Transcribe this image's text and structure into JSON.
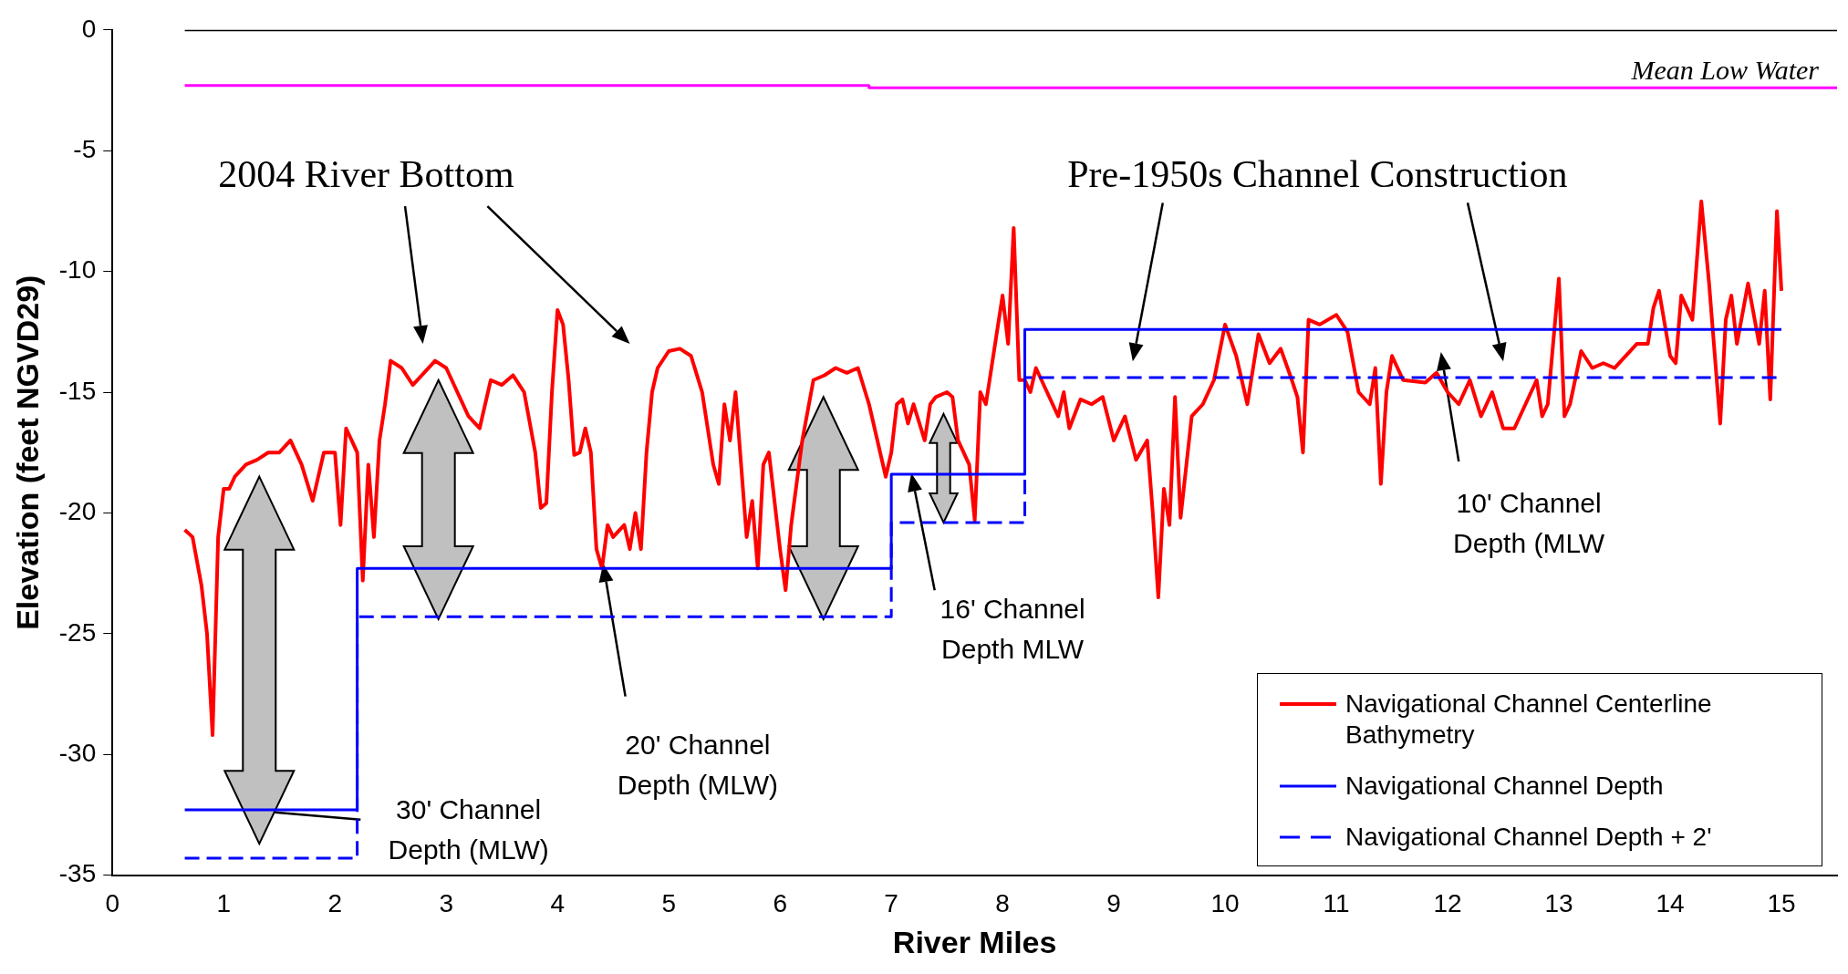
{
  "chart_data": {
    "type": "line",
    "xlabel": "River Miles",
    "ylabel": "Elevation (feet NGVD29)",
    "xlim": [
      0,
      15.5
    ],
    "xticks": [
      0,
      1,
      2,
      3,
      4,
      5,
      6,
      7,
      8,
      9,
      10,
      11,
      12,
      13,
      14,
      15
    ],
    "ylim": [
      -35,
      0
    ],
    "yticks": [
      0,
      -5,
      -10,
      -15,
      -20,
      -25,
      -30,
      -35
    ],
    "grid": false,
    "legend": "bottom right",
    "marker": "none",
    "annotations": [
      "2004 River Bottom",
      "Pre-1950s Channel Construction",
      "30' Channel\nDepth (MLW)",
      "20' Channel\nDepth (MLW)",
      "16' Channel\nDepth MLW",
      "10' Channel\nDepth (MLW"
    ],
    "series": [
      {
        "name": "Navigational Channel Centerline Bathymetry",
        "type": "line",
        "color": "#ff0000",
        "line_style": "solid",
        "x": [
          0.65,
          0.72,
          0.8,
          0.85,
          0.9,
          0.95,
          1.0,
          1.05,
          1.1,
          1.2,
          1.3,
          1.4,
          1.5,
          1.6,
          1.7,
          1.8,
          1.9,
          2.0,
          2.05,
          2.1,
          2.15,
          2.2,
          2.25,
          2.3,
          2.35,
          2.4,
          2.45,
          2.5,
          2.6,
          2.7,
          2.8,
          2.9,
          3.0,
          3.1,
          3.2,
          3.3,
          3.4,
          3.5,
          3.6,
          3.7,
          3.8,
          3.85,
          3.9,
          3.95,
          4.0,
          4.05,
          4.1,
          4.15,
          4.2,
          4.25,
          4.3,
          4.35,
          4.4,
          4.45,
          4.5,
          4.6,
          4.65,
          4.7,
          4.75,
          4.8,
          4.85,
          4.9,
          5.0,
          5.1,
          5.2,
          5.3,
          5.4,
          5.45,
          5.5,
          5.55,
          5.6,
          5.7,
          5.75,
          5.8,
          5.85,
          5.9,
          6.0,
          6.05,
          6.1,
          6.2,
          6.3,
          6.4,
          6.5,
          6.6,
          6.7,
          6.8,
          6.9,
          6.95,
          7.0,
          7.05,
          7.1,
          7.15,
          7.2,
          7.3,
          7.35,
          7.4,
          7.5,
          7.55,
          7.6,
          7.7,
          7.75,
          7.8,
          7.85,
          7.9,
          7.95,
          8.0,
          8.05,
          8.1,
          8.15,
          8.2,
          8.25,
          8.3,
          8.4,
          8.5,
          8.55,
          8.6,
          8.7,
          8.8,
          8.9,
          9.0,
          9.1,
          9.2,
          9.3,
          9.35,
          9.4,
          9.45,
          9.5,
          9.55,
          9.6,
          9.7,
          9.8,
          9.9,
          10.0,
          10.1,
          10.2,
          10.3,
          10.4,
          10.5,
          10.6,
          10.65,
          10.7,
          10.75,
          10.85,
          11.0,
          11.1,
          11.2,
          11.3,
          11.35,
          11.4,
          11.45,
          11.5,
          11.6,
          11.8,
          11.9,
          12.0,
          12.1,
          12.2,
          12.3,
          12.4,
          12.5,
          12.6,
          12.7,
          12.8,
          12.85,
          12.9,
          13.0,
          13.05,
          13.1,
          13.2,
          13.3,
          13.4,
          13.5,
          13.6,
          13.7,
          13.8,
          13.85,
          13.9,
          14.0,
          14.05,
          14.1,
          14.2,
          14.28,
          14.35,
          14.45,
          14.5,
          14.55,
          14.6,
          14.7,
          14.8,
          14.85,
          14.9,
          14.96,
          15.0
        ],
        "values": [
          -20.7,
          -21,
          -23,
          -25,
          -29.2,
          -21,
          -19,
          -19,
          -18.5,
          -18,
          -17.8,
          -17.5,
          -17.5,
          -17,
          -18,
          -19.5,
          -17.5,
          -17.5,
          -20.5,
          -16.5,
          -17,
          -17.5,
          -22.8,
          -18,
          -21,
          -17,
          -15.5,
          -13.7,
          -14,
          -14.7,
          -14.2,
          -13.7,
          -14,
          -15,
          -16,
          -16.5,
          -14.5,
          -14.7,
          -14.3,
          -15,
          -17.5,
          -19.8,
          -19.6,
          -15,
          -11.6,
          -12.2,
          -14.5,
          -17.6,
          -17.5,
          -16.5,
          -17.5,
          -21.5,
          -22.3,
          -20.5,
          -21,
          -20.5,
          -21.5,
          -20,
          -21.5,
          -17.5,
          -15,
          -14,
          -13.3,
          -13.2,
          -13.5,
          -15,
          -18,
          -18.8,
          -15.5,
          -17,
          -15,
          -21,
          -19.5,
          -22.3,
          -18,
          -17.5,
          -21.5,
          -23.2,
          -20.5,
          -17,
          -14.5,
          -14.3,
          -14,
          -14.2,
          -14,
          -15.5,
          -17.5,
          -18.5,
          -17.5,
          -15.5,
          -15.3,
          -16.3,
          -15.5,
          -17,
          -15.5,
          -15.2,
          -15,
          -15.2,
          -17,
          -18,
          -20.3,
          -15,
          -15.5,
          -14,
          -12.5,
          -11,
          -13,
          -8.2,
          -14.5,
          -14.5,
          -15,
          -14,
          -15,
          -16,
          -15,
          -16.5,
          -15.3,
          -15.5,
          -15.2,
          -17,
          -16,
          -17.8,
          -17,
          -20,
          -23.5,
          -19,
          -20.5,
          -15.2,
          -20.2,
          -16,
          -15.5,
          -14.5,
          -12.2,
          -13.5,
          -15.5,
          -12.6,
          -13.8,
          -13.2,
          -14.5,
          -15.2,
          -17.5,
          -12,
          -12.2,
          -11.8,
          -12.5,
          -15,
          -15.5,
          -14,
          -18.8,
          -15,
          -13.5,
          -14.5,
          -14.6,
          -14.2,
          -15,
          -15.5,
          -14.5,
          -16,
          -15,
          -16.5,
          -16.5,
          -15.5,
          -14.5,
          -16,
          -15.5,
          -10.3,
          -16,
          -15.5,
          -13.3,
          -14,
          -13.8,
          -14,
          -13.5,
          -13,
          -13,
          -11.5,
          -10.8,
          -13.5,
          -13.8,
          -11,
          -12,
          -7.1,
          -10.5,
          -16.3,
          -12,
          -11,
          -13,
          -10.5,
          -13,
          -10.8,
          -15.3,
          -7.5,
          -10.8
        ]
      },
      {
        "name": "Navigational Channel Depth",
        "type": "step",
        "color": "#0000ff",
        "line_style": "solid",
        "x": [
          0.65,
          2.2,
          7.0,
          8.2,
          15.0
        ],
        "values": [
          -32.3,
          -22.3,
          -18.4,
          -12.4,
          -12.4
        ]
      },
      {
        "name": "Navigational Channel Depth + 2'",
        "type": "step",
        "color": "#0000ff",
        "line_style": "dashed",
        "x": [
          0.65,
          2.2,
          7.0,
          8.2,
          15.0
        ],
        "values": [
          -34.3,
          -24.3,
          -20.4,
          -14.4,
          -14.4
        ]
      },
      {
        "name": "Mean Low Water",
        "type": "step",
        "color": "#ff00ff",
        "line_style": "solid",
        "x": [
          0.65,
          6.8,
          15.5
        ],
        "values": [
          -2.3,
          -2.4,
          -2.4
        ]
      },
      {
        "type": "line",
        "color": "#000000",
        "line_style": "solid",
        "x": [
          0.65,
          15.5
        ],
        "values": [
          0,
          0
        ]
      }
    ]
  }
}
